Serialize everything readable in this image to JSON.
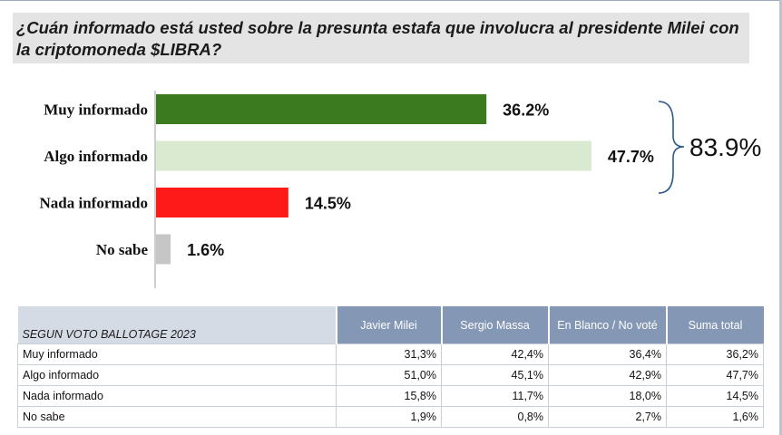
{
  "title": "¿Cuán informado está usted sobre la presunta estafa que involucra al presidente Milei con la criptomoneda $LIBRA?",
  "chart_data": {
    "type": "bar",
    "orientation": "horizontal",
    "categories": [
      "Muy informado",
      "Algo informado",
      "Nada informado",
      "No sabe"
    ],
    "values": [
      36.2,
      47.7,
      14.5,
      1.6
    ],
    "value_labels": [
      "36.2%",
      "47.7%",
      "14.5%",
      "1.6%"
    ],
    "colors": [
      "#3b7a1f",
      "#d9ead1",
      "#ff1a1a",
      "#c6c6c6"
    ],
    "xlim": [
      0,
      100
    ],
    "grid": false,
    "bracket_total_label": "83.9%"
  },
  "table": {
    "corner": "SEGUN VOTO BALLOTAGE 2023",
    "headers": [
      "Javier Milei",
      "Sergio Massa",
      "En Blanco / No voté",
      "Suma total"
    ],
    "rows": [
      {
        "label": "Muy informado",
        "cells": [
          "31,3%",
          "42,4%",
          "36,4%",
          "36,2%"
        ]
      },
      {
        "label": "Algo informado",
        "cells": [
          "51,0%",
          "45,1%",
          "42,9%",
          "47,7%"
        ]
      },
      {
        "label": "Nada informado",
        "cells": [
          "15,8%",
          "11,7%",
          "18,0%",
          "14,5%"
        ]
      },
      {
        "label": "No sabe",
        "cells": [
          "1,9%",
          "0,8%",
          "2,7%",
          "1,6%"
        ]
      }
    ]
  }
}
